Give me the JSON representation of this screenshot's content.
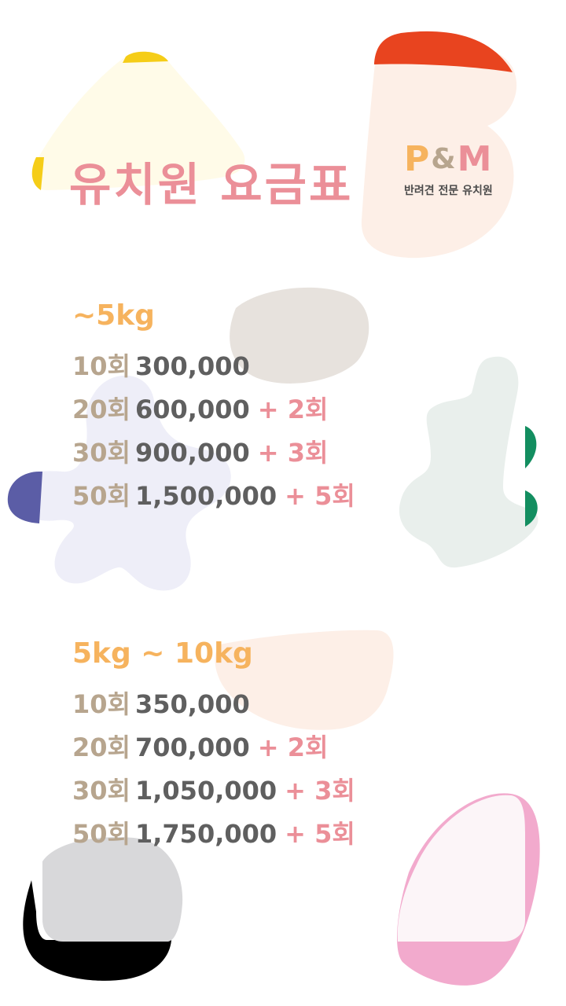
{
  "title": "유치원 요금표",
  "logo": {
    "mark_p": "P",
    "mark_amp": "&",
    "mark_m": "M",
    "subtitle": "반려견 전문 유치원"
  },
  "sections": [
    {
      "weight": "~5kg",
      "rows": [
        {
          "count": "10회",
          "price": "300,000",
          "bonus": ""
        },
        {
          "count": "20회",
          "price": "600,000",
          "bonus": "+ 2회"
        },
        {
          "count": "30회",
          "price": "900,000",
          "bonus": "+ 3회"
        },
        {
          "count": "50회",
          "price": "1,500,000",
          "bonus": "+ 5회"
        }
      ]
    },
    {
      "weight": "5kg ~ 10kg",
      "rows": [
        {
          "count": "10회",
          "price": "350,000",
          "bonus": ""
        },
        {
          "count": "20회",
          "price": "700,000",
          "bonus": "+ 2회"
        },
        {
          "count": "30회",
          "price": "1,050,000",
          "bonus": "+ 3회"
        },
        {
          "count": "50회",
          "price": "1,750,000",
          "bonus": "+ 5회"
        }
      ]
    }
  ],
  "colors": {
    "title": "#eb8f98",
    "weight": "#f6b35e",
    "count": "#b7a58e",
    "price": "#5f5f5f",
    "bonus": "#eb8f98"
  }
}
